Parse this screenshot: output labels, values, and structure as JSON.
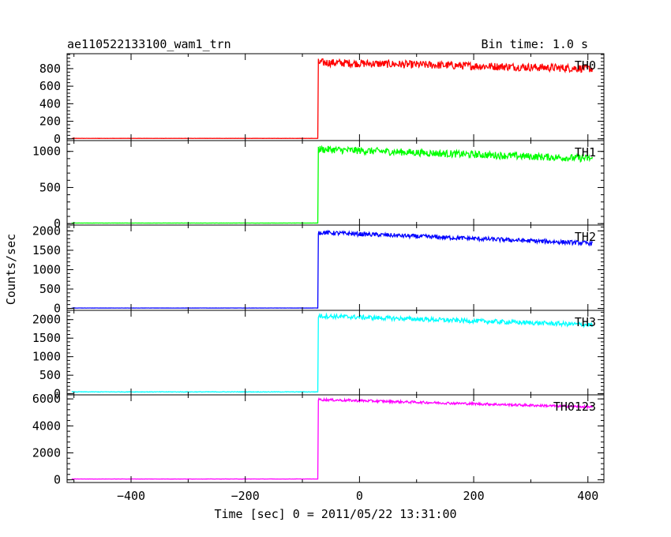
{
  "chart_data": {
    "type": "line",
    "title": "ae110522133100_wam1_trn",
    "bin_time": "Bin time: 1.0 s",
    "xlabel": "Time [sec] 0 = 2011/05/22 13:31:00",
    "ylabel": "Counts/sec",
    "xlim": [
      -512,
      428
    ],
    "xticks": [
      -400,
      -200,
      0,
      200,
      400
    ],
    "xtick_labels": [
      "−400",
      "−200",
      "0",
      "200",
      "400"
    ],
    "grid": false,
    "step_time": -72,
    "panels": [
      {
        "name": "TH0",
        "color": "#ff0000",
        "ylim": [
          -20,
          970
        ],
        "yticks": [
          0,
          200,
          400,
          600,
          800
        ],
        "ytick_labels": [
          "0",
          "200",
          "400",
          "600",
          "800"
        ],
        "pre_level": 5,
        "post_start": 870,
        "post_end": 800,
        "noise": 45
      },
      {
        "name": "TH1",
        "color": "#00ff00",
        "ylim": [
          -20,
          1150
        ],
        "yticks": [
          0,
          500,
          1000
        ],
        "ytick_labels": [
          "0",
          "500",
          "1000"
        ],
        "pre_level": 8,
        "post_start": 1030,
        "post_end": 900,
        "noise": 50
      },
      {
        "name": "TH2",
        "color": "#0000ff",
        "ylim": [
          -50,
          2150
        ],
        "yticks": [
          0,
          500,
          1000,
          1500,
          2000
        ],
        "ytick_labels": [
          "0",
          "500",
          "1000",
          "1500",
          "2000"
        ],
        "pre_level": 10,
        "post_start": 1960,
        "post_end": 1680,
        "noise": 55
      },
      {
        "name": "TH3",
        "color": "#00ffff",
        "ylim": [
          -30,
          2250
        ],
        "yticks": [
          0,
          500,
          1000,
          1500,
          2000
        ],
        "ytick_labels": [
          "0",
          "500",
          "1000",
          "1500",
          "2000"
        ],
        "pre_level": 50,
        "post_start": 2100,
        "post_end": 1860,
        "noise": 60
      },
      {
        "name": "TH0123",
        "color": "#ff00ff",
        "ylim": [
          -200,
          6300
        ],
        "yticks": [
          0,
          2000,
          4000,
          6000
        ],
        "ytick_labels": [
          "0",
          "2000",
          "4000",
          "6000"
        ],
        "pre_level": 60,
        "post_start": 5950,
        "post_end": 5400,
        "noise": 90
      }
    ]
  }
}
